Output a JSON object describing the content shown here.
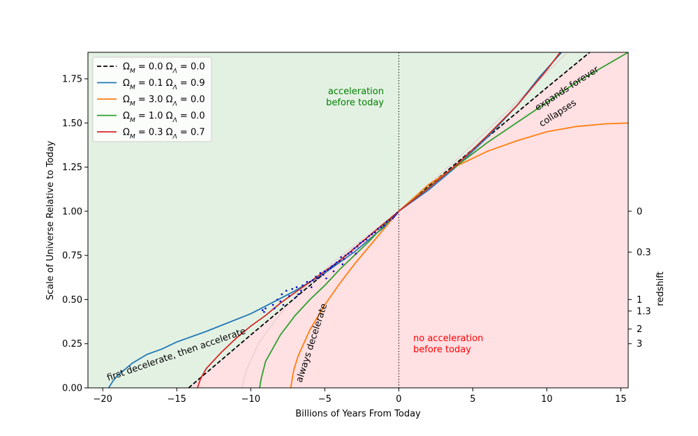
{
  "chart_data": {
    "type": "line",
    "xlabel": "Billions of Years From Today",
    "ylabel": "Scale of Universe Relative to Today",
    "y2label": "redshift",
    "xlim": [
      -21,
      15.5
    ],
    "ylim": [
      0,
      1.9
    ],
    "x_ticks": [
      -20,
      -15,
      -10,
      -5,
      0,
      5,
      10,
      15
    ],
    "x_tick_labels": [
      "−20",
      "−15",
      "−10",
      "−5",
      "0",
      "5",
      "10",
      "15"
    ],
    "y_ticks": [
      0,
      0.25,
      0.5,
      0.75,
      1.0,
      1.25,
      1.5,
      1.75
    ],
    "y_tick_labels": [
      "0.00",
      "0.25",
      "0.50",
      "0.75",
      "1.00",
      "1.25",
      "1.50",
      "1.75"
    ],
    "redshift_ticks": [
      {
        "label": "0",
        "scale": 1.0
      },
      {
        "label": "0.3",
        "scale": 0.769
      },
      {
        "label": "1",
        "scale": 0.5
      },
      {
        "label": "1.3",
        "scale": 0.435
      },
      {
        "label": "2",
        "scale": 0.333
      },
      {
        "label": "3",
        "scale": 0.25
      }
    ],
    "grid": false,
    "legend_position": "top-left",
    "series": [
      {
        "name": "ΩM = 0.0  ΩΛ = 0.0",
        "name_parts": {
          "m": "0.0",
          "l": "0.0"
        },
        "color": "#000000",
        "dash": true,
        "points": [
          [
            -14.2,
            0
          ],
          [
            -10,
            0.3
          ],
          [
            -5,
            0.65
          ],
          [
            0,
            1.0
          ],
          [
            5,
            1.35
          ],
          [
            10,
            1.7
          ],
          [
            12.9,
            1.9
          ]
        ]
      },
      {
        "name": "ΩM = 0.1  ΩΛ = 0.9",
        "name_parts": {
          "m": "0.1",
          "l": "0.9"
        },
        "color": "#1f77b4",
        "dash": false,
        "points": [
          [
            -19.6,
            0
          ],
          [
            -19.3,
            0.04
          ],
          [
            -19,
            0.07
          ],
          [
            -18,
            0.14
          ],
          [
            -17,
            0.19
          ],
          [
            -16,
            0.22
          ],
          [
            -15,
            0.26
          ],
          [
            -13,
            0.32
          ],
          [
            -10,
            0.42
          ],
          [
            -7,
            0.55
          ],
          [
            -5,
            0.65
          ],
          [
            -3,
            0.77
          ],
          [
            -1,
            0.91
          ],
          [
            0,
            1.0
          ],
          [
            2,
            1.12
          ],
          [
            4,
            1.26
          ],
          [
            6,
            1.42
          ],
          [
            8,
            1.6
          ],
          [
            9.5,
            1.76
          ],
          [
            11,
            1.9
          ]
        ]
      },
      {
        "name": "ΩM = 3.0  ΩΛ = 0.0",
        "name_parts": {
          "m": "3.0",
          "l": "0.0"
        },
        "color": "#ff7f0e",
        "dash": false,
        "points": [
          [
            -7.3,
            0
          ],
          [
            -7.1,
            0.1
          ],
          [
            -6.8,
            0.18
          ],
          [
            -6,
            0.33
          ],
          [
            -5,
            0.47
          ],
          [
            -4,
            0.59
          ],
          [
            -3,
            0.7
          ],
          [
            -2,
            0.8
          ],
          [
            -1,
            0.9
          ],
          [
            0,
            1.0
          ],
          [
            2,
            1.15
          ],
          [
            4,
            1.26
          ],
          [
            6,
            1.34
          ],
          [
            8,
            1.4
          ],
          [
            10,
            1.45
          ],
          [
            12,
            1.48
          ],
          [
            14,
            1.495
          ],
          [
            15.5,
            1.5
          ]
        ]
      },
      {
        "name": "ΩM = 1.0  ΩΛ = 0.0",
        "name_parts": {
          "m": "1.0",
          "l": "0.0"
        },
        "color": "#2ca02c",
        "dash": false,
        "points": [
          [
            -9.4,
            0
          ],
          [
            -9.3,
            0.05
          ],
          [
            -9,
            0.15
          ],
          [
            -8,
            0.3
          ],
          [
            -7,
            0.41
          ],
          [
            -6,
            0.5
          ],
          [
            -5,
            0.58
          ],
          [
            -4,
            0.67
          ],
          [
            -3,
            0.75
          ],
          [
            -2,
            0.83
          ],
          [
            -1,
            0.92
          ],
          [
            0,
            1.0
          ],
          [
            3,
            1.2
          ],
          [
            6,
            1.39
          ],
          [
            9,
            1.56
          ],
          [
            12,
            1.73
          ],
          [
            15.5,
            1.9
          ]
        ]
      },
      {
        "name": "ΩM = 0.3  ΩΛ = 0.7",
        "name_parts": {
          "m": "0.3",
          "l": "0.7"
        },
        "color": "#d62728",
        "dash": false,
        "points": [
          [
            -13.6,
            0
          ],
          [
            -13.4,
            0.05
          ],
          [
            -13,
            0.11
          ],
          [
            -12,
            0.2
          ],
          [
            -11,
            0.28
          ],
          [
            -10,
            0.35
          ],
          [
            -9,
            0.41
          ],
          [
            -8,
            0.48
          ],
          [
            -7,
            0.54
          ],
          [
            -6,
            0.6
          ],
          [
            -5,
            0.66
          ],
          [
            -4,
            0.72
          ],
          [
            -3,
            0.79
          ],
          [
            -2,
            0.86
          ],
          [
            -1,
            0.93
          ],
          [
            0,
            1.0
          ],
          [
            2,
            1.13
          ],
          [
            4,
            1.27
          ],
          [
            6,
            1.43
          ],
          [
            8,
            1.6
          ],
          [
            10,
            1.8
          ],
          [
            10.9,
            1.9
          ]
        ]
      }
    ],
    "data_points_color": "#0000cc",
    "data_points": [
      [
        -9.2,
        0.44
      ],
      [
        -9.1,
        0.43
      ],
      [
        -9.0,
        0.45
      ],
      [
        -8.5,
        0.47
      ],
      [
        -8.2,
        0.5
      ],
      [
        -8.0,
        0.49
      ],
      [
        -7.9,
        0.53
      ],
      [
        -7.6,
        0.55
      ],
      [
        -7.4,
        0.52
      ],
      [
        -7.2,
        0.56
      ],
      [
        -7.0,
        0.51
      ],
      [
        -6.9,
        0.57
      ],
      [
        -6.8,
        0.53
      ],
      [
        -6.5,
        0.58
      ],
      [
        -6.2,
        0.6
      ],
      [
        -6.0,
        0.6
      ],
      [
        -5.8,
        0.61
      ],
      [
        -5.6,
        0.63
      ],
      [
        -5.5,
        0.62
      ],
      [
        -5.3,
        0.65
      ],
      [
        -5.1,
        0.64
      ],
      [
        -5.0,
        0.66
      ],
      [
        -4.8,
        0.67
      ],
      [
        -4.6,
        0.68
      ],
      [
        -4.5,
        0.69
      ],
      [
        -4.3,
        0.7
      ],
      [
        -4.2,
        0.71
      ],
      [
        -4.0,
        0.72
      ],
      [
        -3.9,
        0.74
      ],
      [
        -3.7,
        0.73
      ],
      [
        -3.6,
        0.75
      ],
      [
        -3.4,
        0.76
      ],
      [
        -3.2,
        0.77
      ],
      [
        -3.0,
        0.79
      ],
      [
        -2.8,
        0.8
      ],
      [
        -2.6,
        0.82
      ],
      [
        -2.4,
        0.83
      ],
      [
        -2.2,
        0.84
      ],
      [
        -2.0,
        0.86
      ],
      [
        -1.8,
        0.87
      ],
      [
        -1.6,
        0.88
      ],
      [
        -1.4,
        0.9
      ],
      [
        -1.2,
        0.91
      ],
      [
        -1.0,
        0.92
      ],
      [
        -0.8,
        0.94
      ],
      [
        -0.6,
        0.95
      ],
      [
        -0.4,
        0.96
      ],
      [
        -0.3,
        0.97
      ],
      [
        -0.2,
        0.98
      ],
      [
        -0.1,
        0.99
      ],
      [
        -6.6,
        0.55
      ],
      [
        -7.8,
        0.47
      ],
      [
        -8.4,
        0.45
      ],
      [
        -5.9,
        0.57
      ],
      [
        -4.9,
        0.62
      ],
      [
        -4.4,
        0.66
      ],
      [
        -3.8,
        0.7
      ],
      [
        -2.9,
        0.76
      ]
    ],
    "annotations": [
      {
        "key": "accel",
        "lines": [
          "acceleration",
          "before today"
        ],
        "color": "#008000"
      },
      {
        "key": "noaccel",
        "lines": [
          "no acceleration",
          "before today"
        ],
        "color": "#ff0000"
      },
      {
        "key": "fdta",
        "lines": [
          "first  decelerate,  then  accelerate"
        ],
        "color": "#000000"
      },
      {
        "key": "always",
        "lines": [
          "always  decelerate"
        ],
        "color": "#000000"
      },
      {
        "key": "expands",
        "lines": [
          "expands  forever"
        ],
        "color": "#000000"
      },
      {
        "key": "collapses",
        "lines": [
          "collapses"
        ],
        "color": "#000000"
      }
    ],
    "region_colors": {
      "acceleration": "#e3f1e3",
      "no_acceleration": "#ffe0e3"
    }
  }
}
